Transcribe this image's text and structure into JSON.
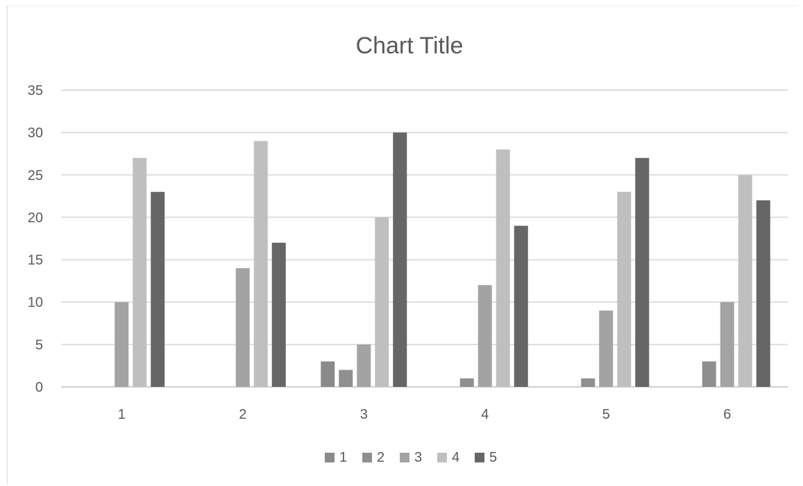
{
  "chart_data": {
    "type": "bar",
    "title": "Chart Title",
    "xlabel": "",
    "ylabel": "",
    "categories": [
      "1",
      "2",
      "3",
      "4",
      "5",
      "6"
    ],
    "ylim": [
      0,
      35
    ],
    "yticks": [
      0,
      5,
      10,
      15,
      20,
      25,
      30,
      35
    ],
    "grid": true,
    "legend_position": "bottom",
    "series": [
      {
        "name": "1",
        "color": "#8a8a8a",
        "values": [
          0,
          0,
          3,
          0,
          0,
          0
        ]
      },
      {
        "name": "2",
        "color": "#8f8f8f",
        "values": [
          0,
          0,
          2,
          1,
          1,
          3
        ]
      },
      {
        "name": "3",
        "color": "#a3a3a3",
        "values": [
          10,
          14,
          5,
          12,
          9,
          10
        ]
      },
      {
        "name": "4",
        "color": "#bfbfbf",
        "values": [
          27,
          29,
          20,
          28,
          23,
          25
        ]
      },
      {
        "name": "5",
        "color": "#666666",
        "values": [
          23,
          17,
          30,
          19,
          27,
          22
        ]
      }
    ]
  }
}
